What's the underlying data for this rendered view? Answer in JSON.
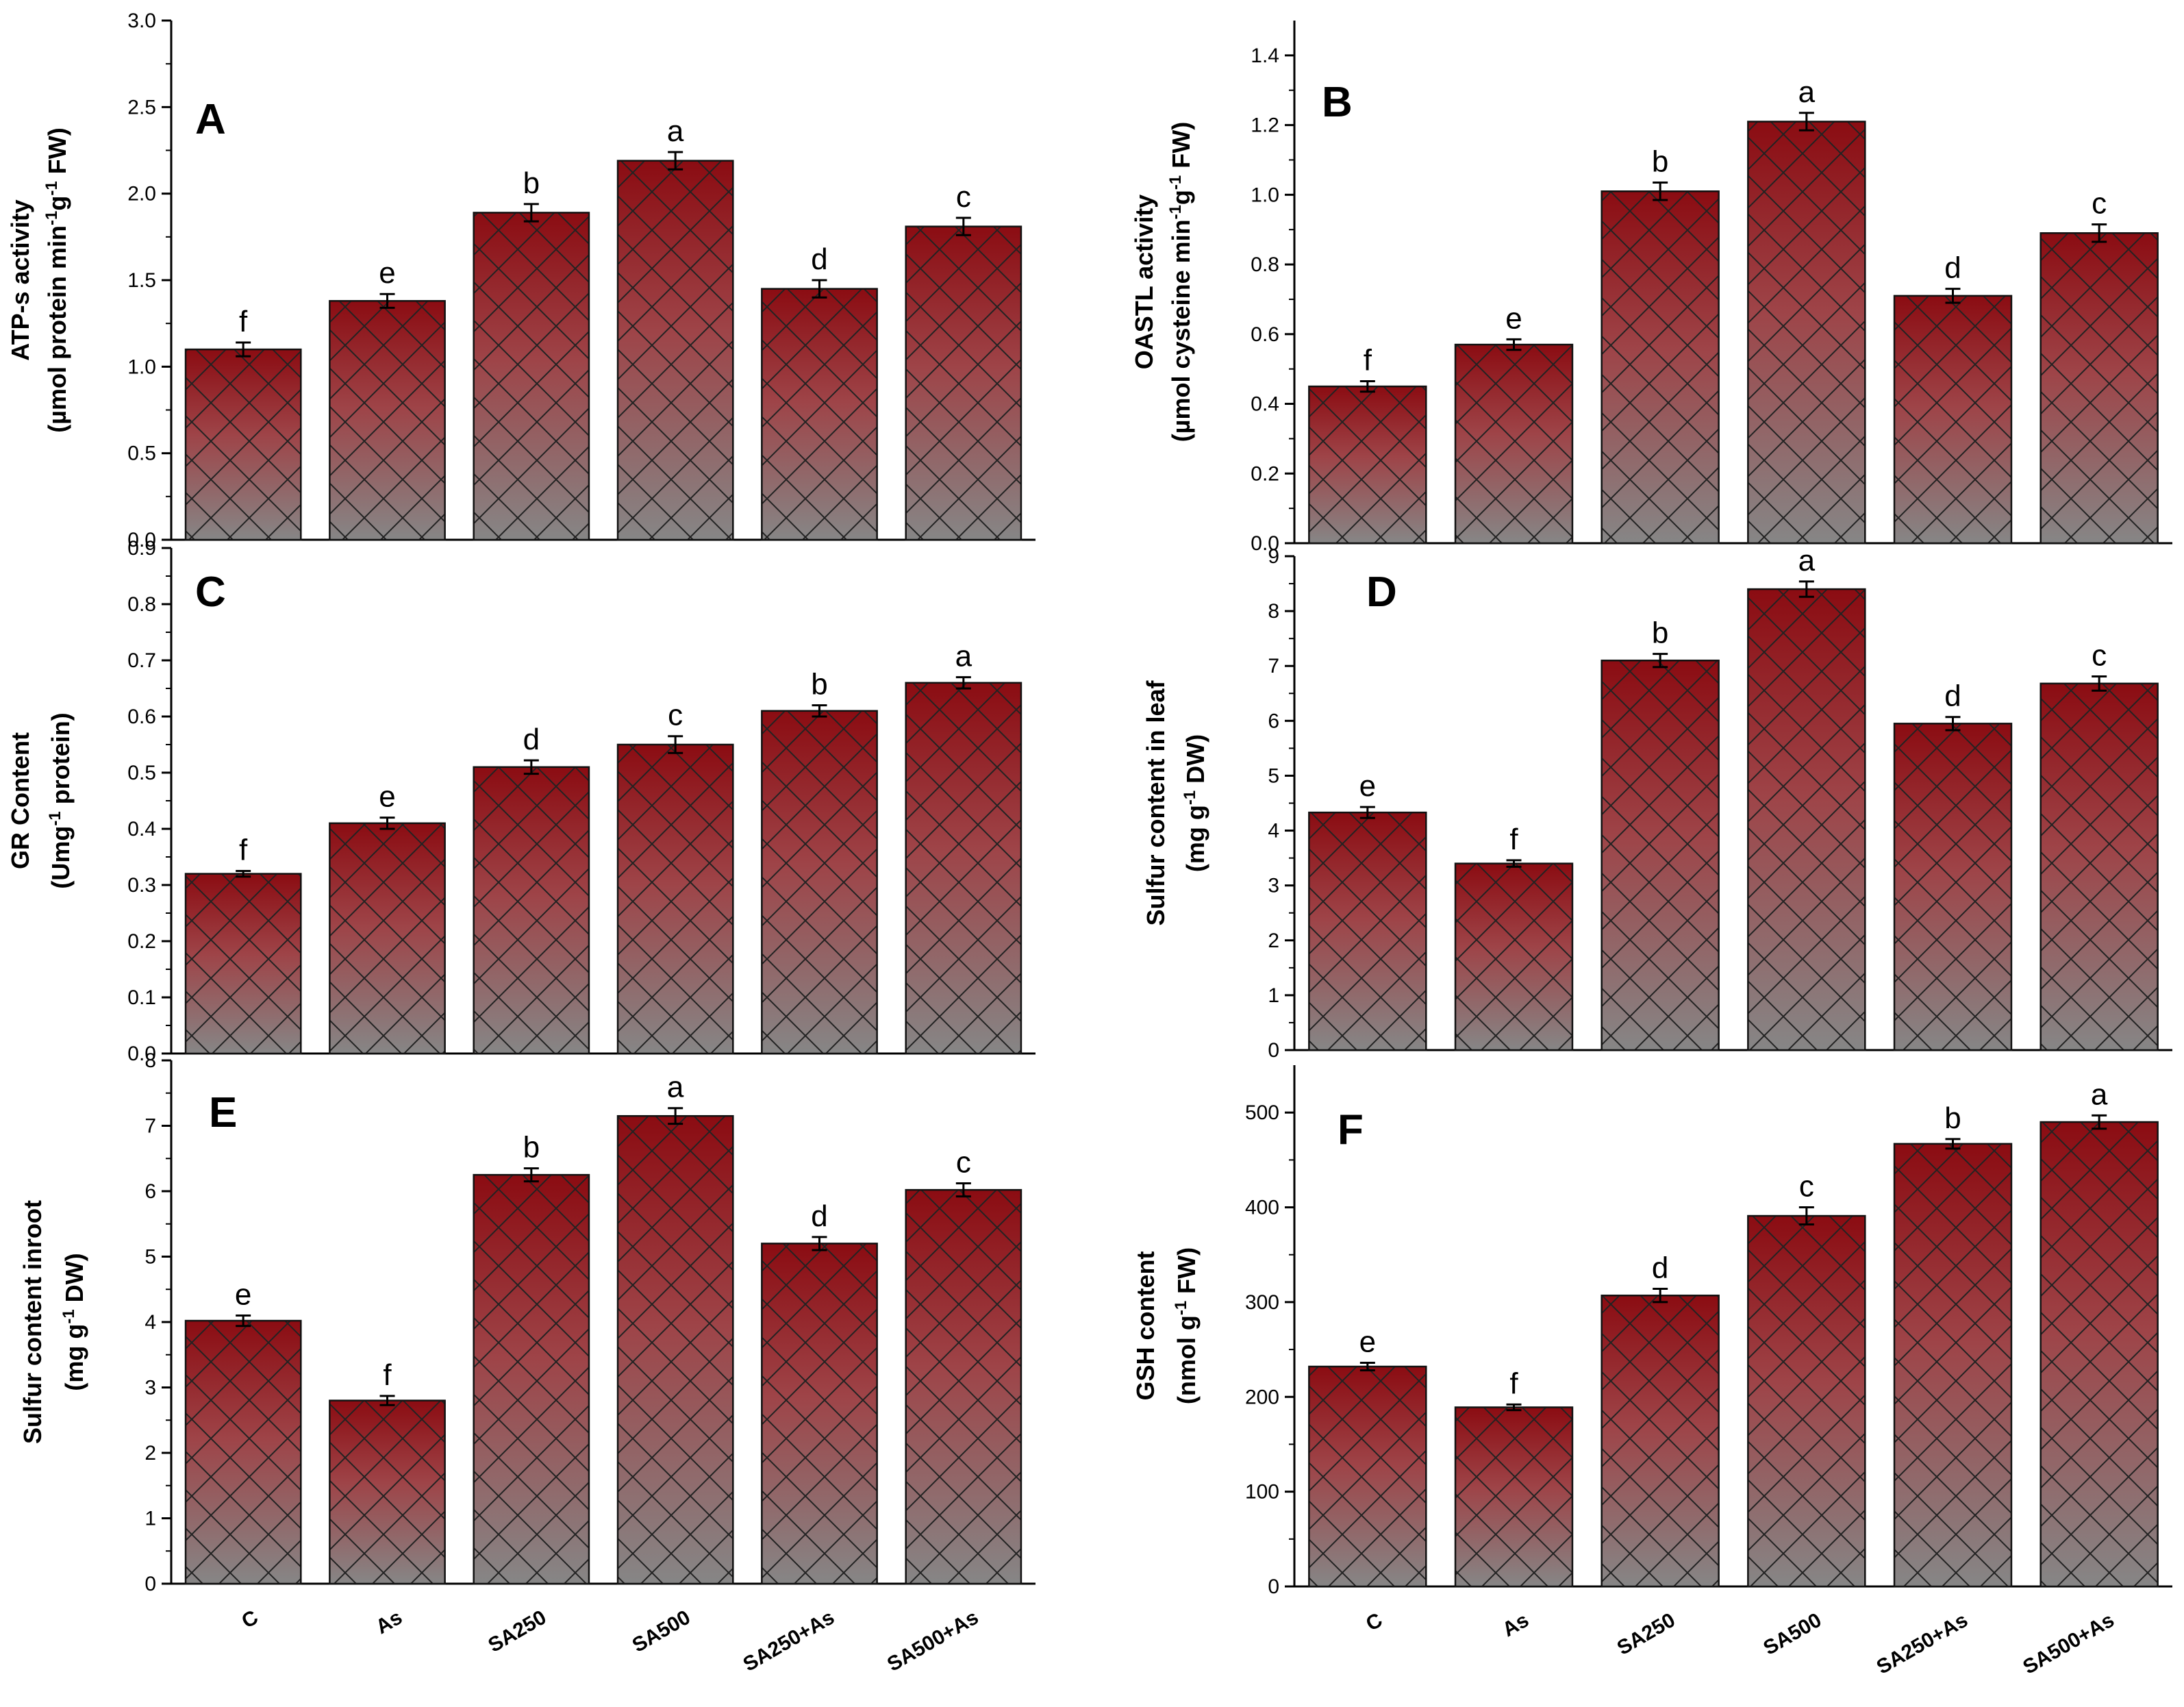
{
  "chart_data": [
    {
      "id": "A",
      "type": "bar",
      "panel_label": "A",
      "categories": [
        "C",
        "As",
        "SA250",
        "SA500",
        "SA250+As",
        "SA500+As"
      ],
      "values": [
        1.1,
        1.38,
        1.89,
        2.19,
        1.45,
        1.81
      ],
      "errors": [
        0.04,
        0.04,
        0.05,
        0.05,
        0.05,
        0.05
      ],
      "letters": [
        "f",
        "e",
        "b",
        "a",
        "d",
        "c"
      ],
      "ylabel_line1": "ATP-s activity",
      "ylabel_line2": "(µmol protein min-1g-1 FW)",
      "ylim": [
        0,
        3.0
      ],
      "ticks": [
        "0.0",
        "0.5",
        "1.0",
        "1.5",
        "2.0",
        "2.5",
        "3.0"
      ],
      "show_categories": false
    },
    {
      "id": "B",
      "type": "bar",
      "panel_label": "B",
      "categories": [
        "C",
        "As",
        "SA250",
        "SA500",
        "SA250+As",
        "SA500+As"
      ],
      "values": [
        0.45,
        0.57,
        1.01,
        1.21,
        0.71,
        0.89
      ],
      "errors": [
        0.015,
        0.015,
        0.025,
        0.025,
        0.02,
        0.025
      ],
      "letters": [
        "f",
        "e",
        "b",
        "a",
        "d",
        "c"
      ],
      "ylabel_line1": "OASTL activity",
      "ylabel_line2": "(µmol cysteine min-1g-1 FW)",
      "ylim": [
        0,
        1.5
      ],
      "ticks": [
        "0.0",
        "0.2",
        "0.4",
        "0.6",
        "0.8",
        "1.0",
        "1.2",
        "1.4"
      ],
      "show_categories": false
    },
    {
      "id": "C",
      "type": "bar",
      "panel_label": "C",
      "categories": [
        "C",
        "As",
        "SA250",
        "SA500",
        "SA250+As",
        "SA500+As"
      ],
      "values": [
        0.32,
        0.41,
        0.51,
        0.55,
        0.61,
        0.66
      ],
      "errors": [
        0.005,
        0.01,
        0.012,
        0.015,
        0.01,
        0.01
      ],
      "letters": [
        "f",
        "e",
        "d",
        "c",
        "b",
        "a"
      ],
      "ylabel_line1": "GR Content",
      "ylabel_line2": "(Umg-1 protein)",
      "ylim": [
        0,
        0.9
      ],
      "ticks": [
        "0.0",
        "0.1",
        "0.2",
        "0.3",
        "0.4",
        "0.5",
        "0.6",
        "0.7",
        "0.8",
        "0.9"
      ],
      "show_categories": false
    },
    {
      "id": "D",
      "type": "bar",
      "panel_label": "D",
      "categories": [
        "C",
        "As",
        "SA250",
        "SA500",
        "SA250+As",
        "SA500+As"
      ],
      "values": [
        4.33,
        3.4,
        7.1,
        8.4,
        5.95,
        6.68
      ],
      "errors": [
        0.1,
        0.06,
        0.12,
        0.14,
        0.12,
        0.13
      ],
      "letters": [
        "e",
        "f",
        "b",
        "a",
        "d",
        "c"
      ],
      "ylabel_line1": "Sulfur content in leaf",
      "ylabel_line2": "(mg g-1 DW)",
      "ylim": [
        0,
        9
      ],
      "ticks": [
        "0",
        "1",
        "2",
        "3",
        "4",
        "5",
        "6",
        "7",
        "8",
        "9"
      ],
      "show_categories": false
    },
    {
      "id": "E",
      "type": "bar",
      "panel_label": "E",
      "categories": [
        "C",
        "As",
        "SA250",
        "SA500",
        "SA250+As",
        "SA500+As"
      ],
      "values": [
        4.02,
        2.8,
        6.25,
        7.15,
        5.2,
        6.02
      ],
      "errors": [
        0.08,
        0.07,
        0.1,
        0.12,
        0.1,
        0.1
      ],
      "letters": [
        "e",
        "f",
        "b",
        "a",
        "d",
        "c"
      ],
      "ylabel_line1": "Sulfur content inroot",
      "ylabel_line2": "(mg g-1 DW)",
      "ylim": [
        0,
        8
      ],
      "ticks": [
        "0",
        "1",
        "2",
        "3",
        "4",
        "5",
        "6",
        "7",
        "8"
      ],
      "show_categories": true
    },
    {
      "id": "F",
      "type": "bar",
      "panel_label": "F",
      "categories": [
        "C",
        "As",
        "SA250",
        "SA500",
        "SA250+As",
        "SA500+As"
      ],
      "values": [
        232,
        189,
        307,
        391,
        467,
        490
      ],
      "errors": [
        4,
        3,
        7,
        9,
        5,
        7
      ],
      "letters": [
        "e",
        "f",
        "d",
        "c",
        "b",
        "a"
      ],
      "ylabel_line1": "GSH content",
      "ylabel_line2": "(nmol g-1 FW)",
      "ylim": [
        0,
        550
      ],
      "ticks": [
        "0",
        "100",
        "200",
        "300",
        "400",
        "500"
      ],
      "show_categories": true
    }
  ],
  "colors": {
    "bar_top": "#8b0c12",
    "bar_mid": "#9e4448",
    "bar_bottom": "#868686",
    "hatch": "#222222",
    "axis": "#000000"
  }
}
